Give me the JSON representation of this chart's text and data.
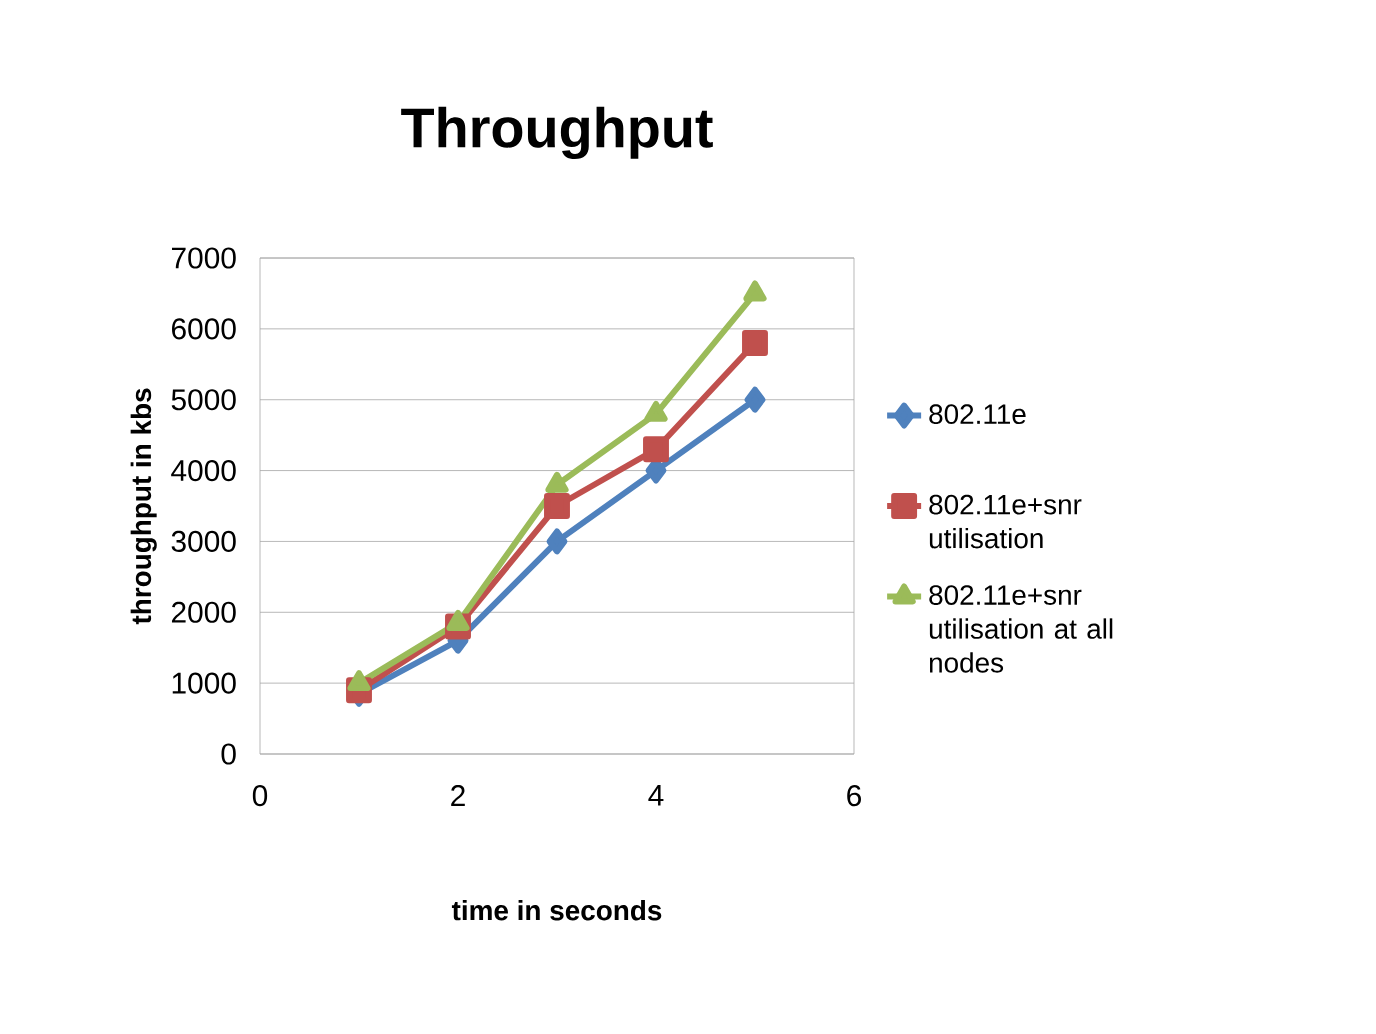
{
  "chart_data": {
    "type": "line",
    "title": "Throughput",
    "xlabel": "time in seconds",
    "ylabel": "throughput in kbs",
    "x": [
      1,
      2,
      3,
      4,
      5
    ],
    "series": [
      {
        "name": "802.11e",
        "color": "#4f81bd",
        "marker": "diamond",
        "values": [
          850,
          1600,
          3000,
          4000,
          5000
        ]
      },
      {
        "name": "802.11e+snr utilisation",
        "color": "#c0504d",
        "marker": "square",
        "values": [
          900,
          1800,
          3500,
          4300,
          5800
        ]
      },
      {
        "name": "802.11e+snr utilisation at all nodes",
        "color": "#9bbb59",
        "marker": "triangle",
        "values": [
          1000,
          1850,
          3800,
          4800,
          6500
        ]
      }
    ],
    "xlim": [
      0,
      6
    ],
    "xticks": [
      0,
      2,
      4,
      6
    ],
    "ylim": [
      0,
      7000
    ],
    "yticks": [
      0,
      1000,
      2000,
      3000,
      4000,
      5000,
      6000,
      7000
    ],
    "grid": "y",
    "legend": "right",
    "line_style": "solid"
  }
}
